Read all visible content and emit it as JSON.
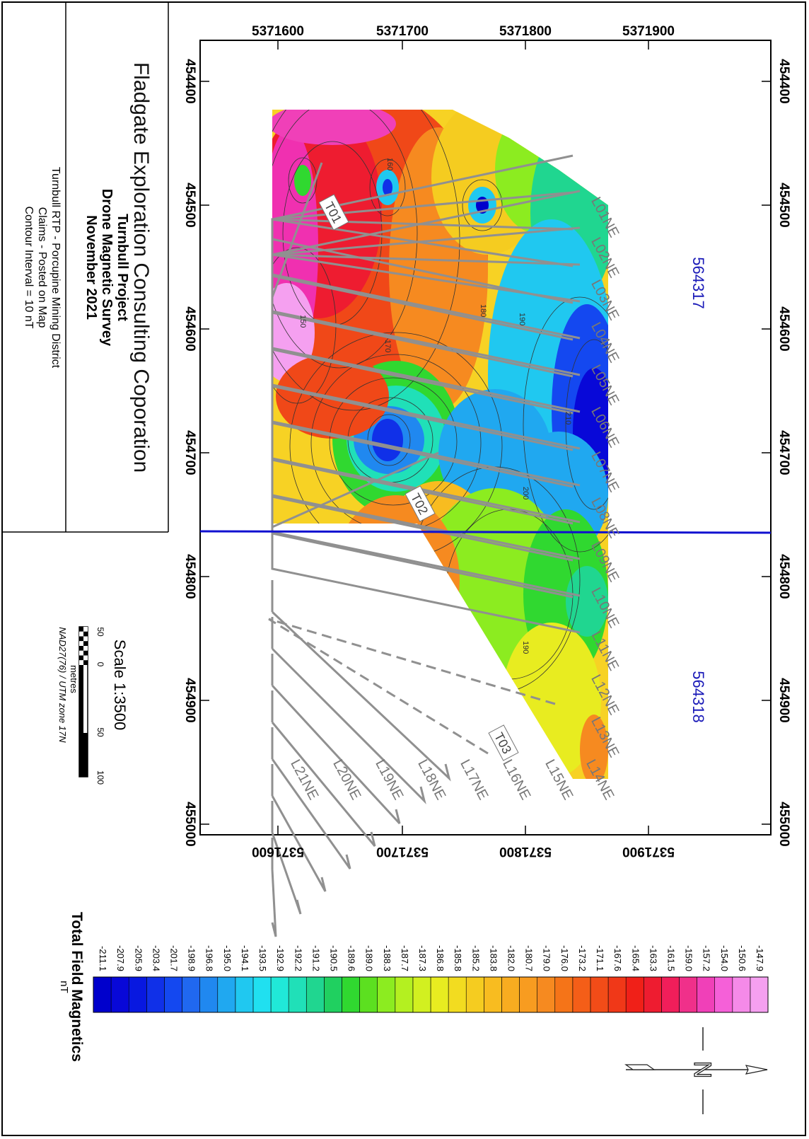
{
  "title_block": {
    "company": "Fladgate Exploration Consulting Coporation",
    "project": "Turnbull Project",
    "survey": "Drone Magnetic Survey",
    "date": "November 2021",
    "notes": [
      "Turnbull RTP - Porcupine Mining District",
      "Claims - Posted on Map",
      "Contour Interval = 10 nT"
    ]
  },
  "scale": {
    "title": "Scale 1:3500",
    "ticks": [
      "50",
      "0",
      "50",
      "100"
    ],
    "unit": "metres",
    "datum": "NAD27(76) / UTM zone 17N"
  },
  "map": {
    "northing_ticks": [
      "5371600",
      "5371700",
      "5371800",
      "5371900"
    ],
    "easting_ticks": [
      "454400",
      "454500",
      "454600",
      "454700",
      "454800",
      "454900",
      "455000"
    ],
    "claims": [
      "564317",
      "564318"
    ],
    "lines": [
      "L01NE",
      "L02NE",
      "L03NE",
      "L04NE",
      "L05NE",
      "L06NE",
      "L07NE",
      "L08NE",
      "L09NE",
      "L10NE",
      "L11NE",
      "L12NE",
      "L13NE",
      "L14NE",
      "L15NE",
      "L16NE",
      "L17NE",
      "L18NE",
      "L19NE",
      "L20NE",
      "L21NE"
    ],
    "tie_lines": [
      "T01",
      "T02",
      "T03"
    ],
    "contour_labels": [
      "160",
      "180",
      "190",
      "170",
      "150",
      "210",
      "200",
      "190"
    ]
  },
  "legend": {
    "title": "Total Field Magnetics",
    "unit": "nT",
    "values": [
      "-147.9",
      "-150.6",
      "-154.0",
      "-157.2",
      "-159.0",
      "-161.5",
      "-163.3",
      "-165.4",
      "-167.6",
      "-171.1",
      "-173.2",
      "-176.0",
      "-179.0",
      "-180.7",
      "-182.0",
      "-183.8",
      "-185.2",
      "-185.8",
      "-186.8",
      "-187.3",
      "-187.7",
      "-188.3",
      "-189.0",
      "-189.6",
      "-190.5",
      "-191.2",
      "-192.2",
      "-192.9",
      "-193.5",
      "-194.1",
      "-195.0",
      "-196.8",
      "-198.9",
      "-201.7",
      "-203.4",
      "-205.9",
      "-207.9",
      "-211.1"
    ],
    "colors": [
      "#f5a0f0",
      "#f58ae8",
      "#f560d8",
      "#f040b8",
      "#f0308a",
      "#f01e5a",
      "#ee1c30",
      "#f02018",
      "#f03818",
      "#f24c18",
      "#f45e18",
      "#f57418",
      "#f68a20",
      "#f89c20",
      "#f8ac20",
      "#f8bc20",
      "#f5cc20",
      "#f2dc20",
      "#e8ec20",
      "#d2f020",
      "#b4f020",
      "#8cec20",
      "#5ce020",
      "#30d830",
      "#20d060",
      "#20d690",
      "#20e0b8",
      "#20e8d8",
      "#20e0f0",
      "#20c8f0",
      "#20a8f0",
      "#2088f0",
      "#2068f0",
      "#1448f0",
      "#1030e8",
      "#0818e0",
      "#0808d8",
      "#0000cc"
    ]
  },
  "north_arrow": {
    "label": "N"
  }
}
